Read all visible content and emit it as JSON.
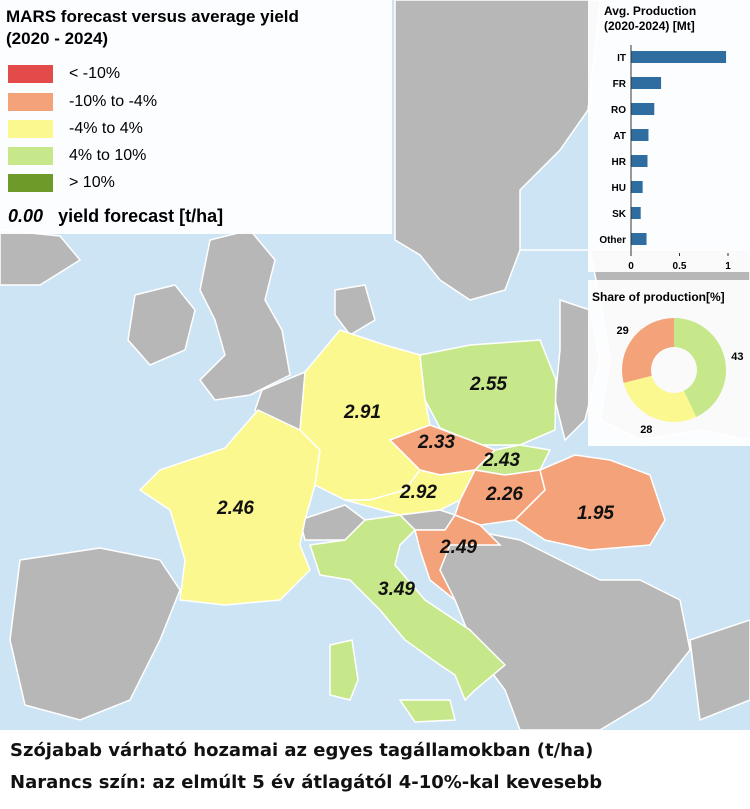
{
  "legend": {
    "title_line1": "MARS forecast versus average yield",
    "title_line2": "(2020 - 2024)",
    "items": [
      {
        "label": "< -10%",
        "color": "#e34a4a"
      },
      {
        "label": "-10% to -4%",
        "color": "#f4a27a"
      },
      {
        "label": "-4% to 4%",
        "color": "#fbf88f"
      },
      {
        "label": "4% to 10%",
        "color": "#c6e88a"
      },
      {
        "label": "> 10%",
        "color": "#6e9a2a"
      }
    ],
    "forecast_number": "0.00",
    "forecast_label": "yield forecast [t/ha]"
  },
  "production_chart": {
    "title_line1": "Avg. Production",
    "title_line2": "(2020-2024) [Mt]",
    "categories": [
      "IT",
      "FR",
      "RO",
      "AT",
      "HR",
      "HU",
      "SK",
      "Other"
    ],
    "values": [
      0.98,
      0.31,
      0.24,
      0.18,
      0.17,
      0.12,
      0.1,
      0.16
    ],
    "xlim": [
      0,
      1
    ],
    "xticks": [
      "0",
      "0.5",
      "1"
    ],
    "bar_color": "#2f6da0"
  },
  "share_chart": {
    "title": "Share of production[%]",
    "values": [
      43,
      28,
      29
    ],
    "labels": [
      "43",
      "28",
      "29"
    ],
    "colors": [
      "#c6e88a",
      "#fbf88f",
      "#f4a27a"
    ]
  },
  "countries": [
    {
      "code": "FR",
      "value": "2.46",
      "color": "#fbf88f"
    },
    {
      "code": "DE",
      "value": "2.91",
      "color": "#fbf88f"
    },
    {
      "code": "PL",
      "value": "2.55",
      "color": "#c6e88a"
    },
    {
      "code": "CZ",
      "value": "2.33",
      "color": "#f4a27a"
    },
    {
      "code": "SK",
      "value": "2.43",
      "color": "#c6e88a"
    },
    {
      "code": "AT",
      "value": "2.92",
      "color": "#fbf88f"
    },
    {
      "code": "HU",
      "value": "2.26",
      "color": "#f4a27a"
    },
    {
      "code": "RO",
      "value": "1.95",
      "color": "#f4a27a"
    },
    {
      "code": "HR",
      "value": "2.49",
      "color": "#f4a27a"
    },
    {
      "code": "IT",
      "value": "3.49",
      "color": "#c6e88a"
    }
  ],
  "caption": {
    "line1": "Szójabab várható hozamai az egyes tagállamokban (t/ha)",
    "line2": "Narancs szín: az elmúlt 5 év átlagától 4-10%-kal kevesebb"
  },
  "map_colors": {
    "sea": "#cde4f5",
    "land": "#b7b7b7",
    "border": "#ffffff"
  }
}
